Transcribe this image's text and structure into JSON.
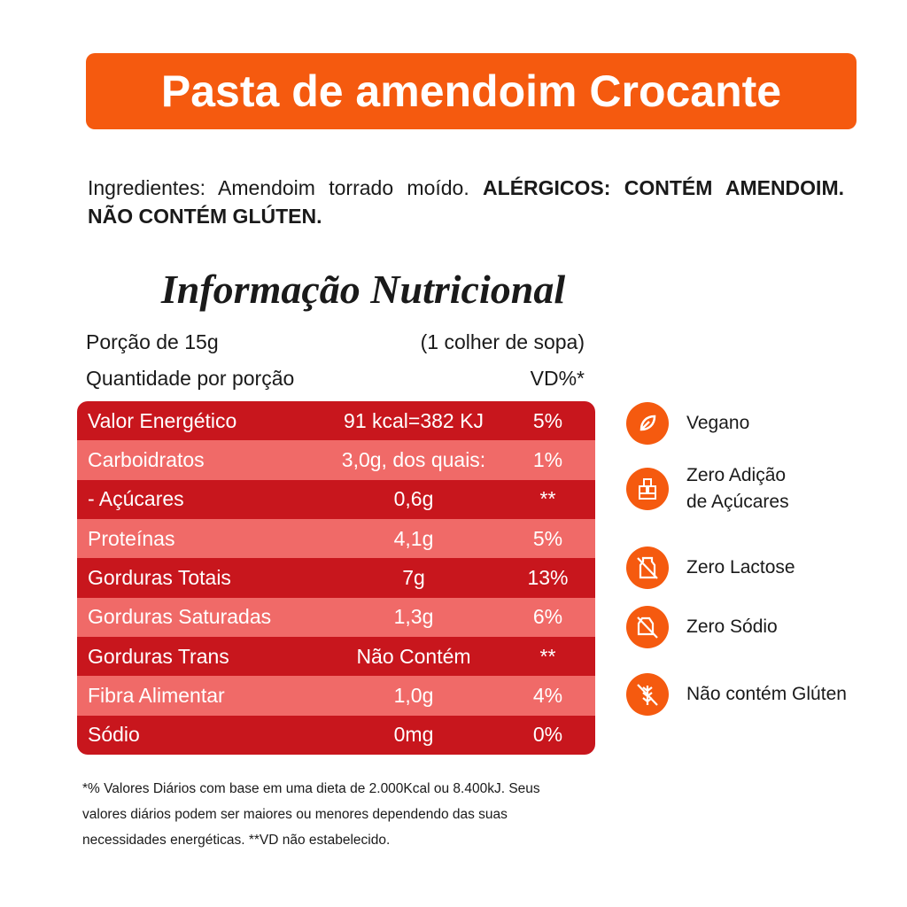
{
  "header": {
    "title": "Pasta de amendoim Crocante"
  },
  "ingredients": {
    "text": "Ingredientes: Amendoim torrado moído.",
    "allergens": "ALÉRGICOS: CONTÉM AMENDOIM. NÃO CONTÉM GLÚTEN."
  },
  "nutrition": {
    "title": "Informação Nutricional",
    "portion": "Porção de 15g",
    "portion_measure": "(1 colher de sopa)",
    "quantity_label": "Quantidade por porção",
    "vd_label": "VD%*",
    "rows": [
      [
        "Valor Energético",
        "91 kcal=382 KJ",
        "5%"
      ],
      [
        "Carboidratos",
        "3,0g, dos quais:",
        "1%"
      ],
      [
        "- Açúcares",
        "0,6g",
        "**"
      ],
      [
        "Proteínas",
        "4,1g",
        "5%"
      ],
      [
        "Gorduras Totais",
        "7g",
        "13%"
      ],
      [
        "Gorduras Saturadas",
        "1,3g",
        "6%"
      ],
      [
        "Gorduras Trans",
        "Não Contém",
        "**"
      ],
      [
        "Fibra Alimentar",
        "1,0g",
        "4%"
      ],
      [
        "Sódio",
        "0mg",
        "0%"
      ]
    ]
  },
  "badges": [
    {
      "lines": [
        "Vegano"
      ]
    },
    {
      "lines": [
        "Zero Adição",
        "de Açúcares"
      ]
    },
    {
      "lines": [
        "Zero Lactose"
      ]
    },
    {
      "lines": [
        "Zero Sódio"
      ]
    },
    {
      "lines": [
        "Não contém Glúten"
      ]
    }
  ],
  "footnote": {
    "lines": [
      "*% Valores Diários com base em uma dieta de 2.000Kcal ou 8.400kJ. Seus",
      "valores diários podem ser maiores ou menores dependendo das suas",
      "necessidades energéticas. **VD não estabelecido."
    ]
  }
}
